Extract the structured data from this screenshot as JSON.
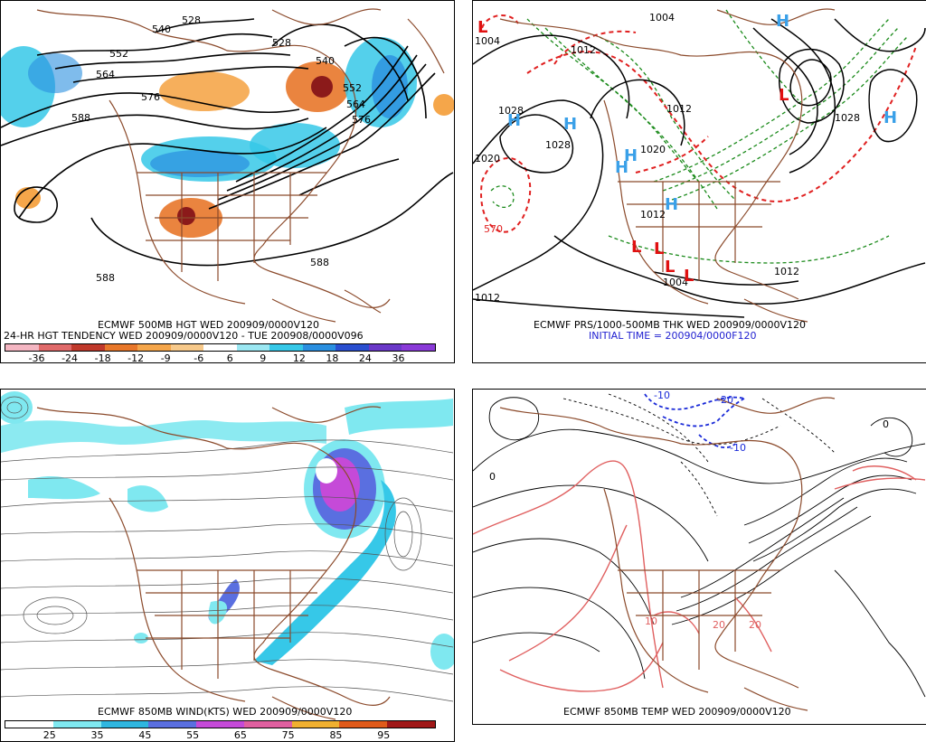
{
  "panels": {
    "tl": {
      "caption1": "ECMWF 500MB HGT WED 200909/0000V120",
      "caption2": "24-HR HGT TENDENCY WED 200909/0000V120 - TUE 200908/0000V096",
      "contour_labels": [
        "540",
        "528",
        "552",
        "564",
        "576",
        "588",
        "528",
        "540",
        "552",
        "564",
        "576",
        "588",
        "588"
      ],
      "colorbar": {
        "colors": [
          "#f4b6c2",
          "#e06a6a",
          "#c0392b",
          "#e8772a",
          "#f5a64a",
          "#f7c98a",
          "#ffffff",
          "#9be7f2",
          "#36c8e8",
          "#2a8fe0",
          "#2a4fd0",
          "#6a38c8",
          "#8a3ad8"
        ],
        "ticks": [
          "-36",
          "-24",
          "-18",
          "-12",
          "-9",
          "-6",
          "6",
          "9",
          "12",
          "18",
          "24",
          "36"
        ]
      }
    },
    "tr": {
      "caption1": "ECMWF PRS/1000-500MB THK WED 200909/0000V120",
      "caption2": "INITIAL TIME = 200904/0000F120",
      "labels": [
        "1004",
        "1004",
        "1012",
        "1028",
        "1028",
        "1020",
        "1020",
        "1012",
        "1012",
        "1028",
        "1012",
        "1012",
        "1004",
        "570"
      ],
      "highs": [
        "H",
        "H",
        "H",
        "H",
        "H",
        "H",
        "H"
      ],
      "lows": [
        "L",
        "L",
        "L",
        "L",
        "L",
        "L"
      ]
    },
    "bl": {
      "caption1": "ECMWF 850MB WIND(KTS) WED 200909/0000V120",
      "colorbar": {
        "colors": [
          "#ffffff",
          "#7fe8f0",
          "#2fb6e0",
          "#5a6fe0",
          "#c54ad8",
          "#e060a0",
          "#f0b030",
          "#e05a1a",
          "#a01818"
        ],
        "ticks": [
          "25",
          "35",
          "45",
          "55",
          "65",
          "75",
          "85",
          "95"
        ]
      }
    },
    "br": {
      "caption1": "ECMWF 850MB TEMP WED 200909/0000V120",
      "labels": [
        "0",
        "0",
        "-10",
        "-10",
        "-20",
        "10",
        "20",
        "20"
      ]
    }
  },
  "colors": {
    "land": "#8b4a2b",
    "red_contour": "#e02020",
    "green_contour": "#1a8a1a",
    "blue_dash": "#1a2ad8",
    "high_letter": "#3aa0e8",
    "low_letter": "#e01010"
  }
}
